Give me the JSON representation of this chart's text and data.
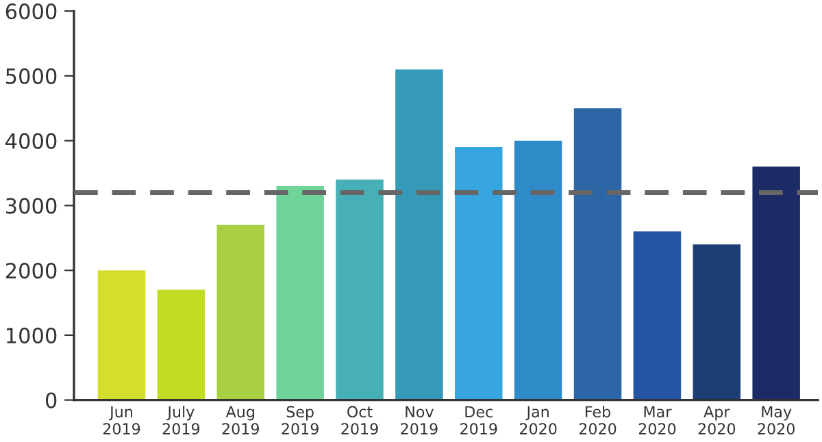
{
  "chart_data": {
    "type": "bar",
    "categories": [
      "Jun\n2019",
      "July\n2019",
      "Aug\n2019",
      "Sep\n2019",
      "Oct\n2019",
      "Nov\n2019",
      "Dec\n2019",
      "Jan\n2020",
      "Feb\n2020",
      "Mar\n2020",
      "Apr\n2020",
      "May\n2020"
    ],
    "values": [
      2000,
      1700,
      2700,
      3300,
      3400,
      5100,
      3900,
      4000,
      4500,
      2600,
      2400,
      3600
    ],
    "colors": [
      "#d4df2c",
      "#c2dc24",
      "#a9d043",
      "#6fd49a",
      "#46b0b6",
      "#3799b8",
      "#37a6e0",
      "#2f8ac8",
      "#2c66a6",
      "#2454a4",
      "#1d3e74",
      "#1c2a66"
    ],
    "ylim": [
      0,
      6000
    ],
    "yticks": [
      0,
      1000,
      2000,
      3000,
      4000,
      5000,
      6000
    ],
    "grid": false,
    "ref_lines": [
      {
        "axis": "y",
        "value": 3200,
        "color": "#666666",
        "line_style": "dashed"
      }
    ]
  }
}
